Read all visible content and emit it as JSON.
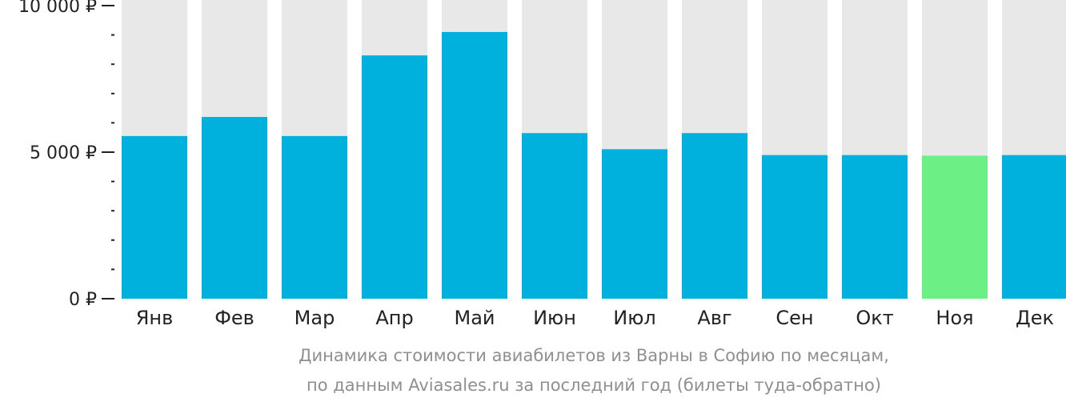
{
  "chart_data": {
    "type": "bar",
    "title": "",
    "xlabel": "",
    "ylabel": "",
    "categories": [
      "Янв",
      "Фев",
      "Мар",
      "Апр",
      "Май",
      "Июн",
      "Июл",
      "Авг",
      "Сен",
      "Окт",
      "Ноя",
      "Дек"
    ],
    "series": [
      {
        "values": [
          5550,
          6200,
          5550,
          8300,
          9100,
          5650,
          5100,
          5650,
          4900,
          4900,
          4880,
          4900
        ]
      }
    ],
    "ylim": [
      0,
      10000
    ],
    "yticks": [
      {
        "value": 0,
        "label": "0 ₽"
      },
      {
        "value": 5000,
        "label": "5 000 ₽"
      },
      {
        "value": 10000,
        "label": "10 000 ₽"
      }
    ],
    "minor_tick_step": 1000,
    "highlight_index": 10,
    "colors": {
      "bar": "#00b0dd",
      "highlight": "#6cef84",
      "track": "#e8e8e8",
      "axis": "#222222"
    },
    "caption": [
      "Динамика стоимости авиабилетов из Варны в Софию по месяцам,",
      "по данным Aviasales.ru за последний год (билеты туда-обратно)"
    ]
  }
}
